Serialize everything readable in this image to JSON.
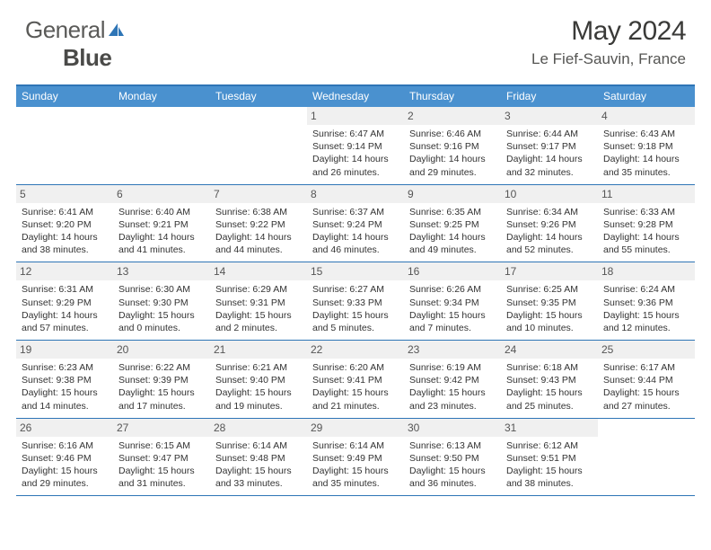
{
  "logo": {
    "part1": "General",
    "part2": "Blue"
  },
  "title": "May 2024",
  "location": "Le Fief-Sauvin, France",
  "colors": {
    "header_bar": "#4a91cf",
    "rule": "#2e75b6",
    "daynum_bg": "#f0f0f0",
    "logo_gray": "#5a5a58",
    "logo_blue": "#2e75b6"
  },
  "weekdays": [
    "Sunday",
    "Monday",
    "Tuesday",
    "Wednesday",
    "Thursday",
    "Friday",
    "Saturday"
  ],
  "weeks": [
    [
      null,
      null,
      null,
      {
        "n": "1",
        "sr": "6:47 AM",
        "ss": "9:14 PM",
        "dl1": "14 hours",
        "dl2": "and 26 minutes."
      },
      {
        "n": "2",
        "sr": "6:46 AM",
        "ss": "9:16 PM",
        "dl1": "14 hours",
        "dl2": "and 29 minutes."
      },
      {
        "n": "3",
        "sr": "6:44 AM",
        "ss": "9:17 PM",
        "dl1": "14 hours",
        "dl2": "and 32 minutes."
      },
      {
        "n": "4",
        "sr": "6:43 AM",
        "ss": "9:18 PM",
        "dl1": "14 hours",
        "dl2": "and 35 minutes."
      }
    ],
    [
      {
        "n": "5",
        "sr": "6:41 AM",
        "ss": "9:20 PM",
        "dl1": "14 hours",
        "dl2": "and 38 minutes."
      },
      {
        "n": "6",
        "sr": "6:40 AM",
        "ss": "9:21 PM",
        "dl1": "14 hours",
        "dl2": "and 41 minutes."
      },
      {
        "n": "7",
        "sr": "6:38 AM",
        "ss": "9:22 PM",
        "dl1": "14 hours",
        "dl2": "and 44 minutes."
      },
      {
        "n": "8",
        "sr": "6:37 AM",
        "ss": "9:24 PM",
        "dl1": "14 hours",
        "dl2": "and 46 minutes."
      },
      {
        "n": "9",
        "sr": "6:35 AM",
        "ss": "9:25 PM",
        "dl1": "14 hours",
        "dl2": "and 49 minutes."
      },
      {
        "n": "10",
        "sr": "6:34 AM",
        "ss": "9:26 PM",
        "dl1": "14 hours",
        "dl2": "and 52 minutes."
      },
      {
        "n": "11",
        "sr": "6:33 AM",
        "ss": "9:28 PM",
        "dl1": "14 hours",
        "dl2": "and 55 minutes."
      }
    ],
    [
      {
        "n": "12",
        "sr": "6:31 AM",
        "ss": "9:29 PM",
        "dl1": "14 hours",
        "dl2": "and 57 minutes."
      },
      {
        "n": "13",
        "sr": "6:30 AM",
        "ss": "9:30 PM",
        "dl1": "15 hours",
        "dl2": "and 0 minutes."
      },
      {
        "n": "14",
        "sr": "6:29 AM",
        "ss": "9:31 PM",
        "dl1": "15 hours",
        "dl2": "and 2 minutes."
      },
      {
        "n": "15",
        "sr": "6:27 AM",
        "ss": "9:33 PM",
        "dl1": "15 hours",
        "dl2": "and 5 minutes."
      },
      {
        "n": "16",
        "sr": "6:26 AM",
        "ss": "9:34 PM",
        "dl1": "15 hours",
        "dl2": "and 7 minutes."
      },
      {
        "n": "17",
        "sr": "6:25 AM",
        "ss": "9:35 PM",
        "dl1": "15 hours",
        "dl2": "and 10 minutes."
      },
      {
        "n": "18",
        "sr": "6:24 AM",
        "ss": "9:36 PM",
        "dl1": "15 hours",
        "dl2": "and 12 minutes."
      }
    ],
    [
      {
        "n": "19",
        "sr": "6:23 AM",
        "ss": "9:38 PM",
        "dl1": "15 hours",
        "dl2": "and 14 minutes."
      },
      {
        "n": "20",
        "sr": "6:22 AM",
        "ss": "9:39 PM",
        "dl1": "15 hours",
        "dl2": "and 17 minutes."
      },
      {
        "n": "21",
        "sr": "6:21 AM",
        "ss": "9:40 PM",
        "dl1": "15 hours",
        "dl2": "and 19 minutes."
      },
      {
        "n": "22",
        "sr": "6:20 AM",
        "ss": "9:41 PM",
        "dl1": "15 hours",
        "dl2": "and 21 minutes."
      },
      {
        "n": "23",
        "sr": "6:19 AM",
        "ss": "9:42 PM",
        "dl1": "15 hours",
        "dl2": "and 23 minutes."
      },
      {
        "n": "24",
        "sr": "6:18 AM",
        "ss": "9:43 PM",
        "dl1": "15 hours",
        "dl2": "and 25 minutes."
      },
      {
        "n": "25",
        "sr": "6:17 AM",
        "ss": "9:44 PM",
        "dl1": "15 hours",
        "dl2": "and 27 minutes."
      }
    ],
    [
      {
        "n": "26",
        "sr": "6:16 AM",
        "ss": "9:46 PM",
        "dl1": "15 hours",
        "dl2": "and 29 minutes."
      },
      {
        "n": "27",
        "sr": "6:15 AM",
        "ss": "9:47 PM",
        "dl1": "15 hours",
        "dl2": "and 31 minutes."
      },
      {
        "n": "28",
        "sr": "6:14 AM",
        "ss": "9:48 PM",
        "dl1": "15 hours",
        "dl2": "and 33 minutes."
      },
      {
        "n": "29",
        "sr": "6:14 AM",
        "ss": "9:49 PM",
        "dl1": "15 hours",
        "dl2": "and 35 minutes."
      },
      {
        "n": "30",
        "sr": "6:13 AM",
        "ss": "9:50 PM",
        "dl1": "15 hours",
        "dl2": "and 36 minutes."
      },
      {
        "n": "31",
        "sr": "6:12 AM",
        "ss": "9:51 PM",
        "dl1": "15 hours",
        "dl2": "and 38 minutes."
      },
      null
    ]
  ],
  "labels": {
    "sunrise": "Sunrise: ",
    "sunset": "Sunset: ",
    "daylight": "Daylight: "
  }
}
